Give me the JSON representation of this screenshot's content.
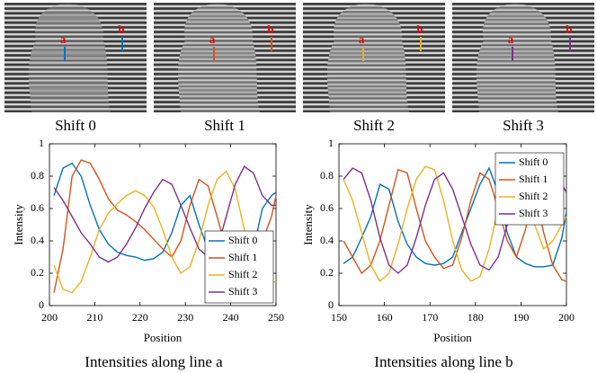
{
  "images": [
    {
      "caption": "Shift 0",
      "markers": [
        "a",
        "b"
      ]
    },
    {
      "caption": "Shift 1",
      "markers": [
        "a",
        "b"
      ]
    },
    {
      "caption": "Shift 2",
      "markers": [
        "a",
        "b"
      ]
    },
    {
      "caption": "Shift 3",
      "markers": [
        "a",
        "b"
      ]
    }
  ],
  "chart_data": [
    {
      "type": "line",
      "caption": "Intensities along line a",
      "xlabel": "Position",
      "ylabel": "Intensity",
      "x": [
        201,
        203,
        205,
        207,
        209,
        211,
        213,
        215,
        217,
        219,
        221,
        223,
        225,
        227,
        229,
        231,
        233,
        235,
        237,
        239,
        241,
        243,
        245,
        247,
        249,
        250
      ],
      "xlim": [
        200,
        250
      ],
      "xticks": [
        200,
        210,
        220,
        230,
        240,
        250
      ],
      "ylim": [
        0,
        1
      ],
      "yticks": [
        0,
        0.2,
        0.4,
        0.6,
        0.8,
        1
      ],
      "legend": "lower-right",
      "series": [
        {
          "name": "Shift 0",
          "color": "#0072bd",
          "values": [
            0.68,
            0.85,
            0.88,
            0.8,
            0.62,
            0.47,
            0.38,
            0.33,
            0.31,
            0.3,
            0.28,
            0.29,
            0.33,
            0.45,
            0.62,
            0.68,
            0.5,
            0.35,
            0.28,
            0.25,
            0.23,
            0.23,
            0.35,
            0.6,
            0.68,
            0.7
          ]
        },
        {
          "name": "Shift 1",
          "color": "#d95319",
          "values": [
            0.08,
            0.35,
            0.8,
            0.9,
            0.88,
            0.78,
            0.66,
            0.59,
            0.56,
            0.52,
            0.47,
            0.41,
            0.35,
            0.3,
            0.4,
            0.62,
            0.78,
            0.74,
            0.55,
            0.35,
            0.23,
            0.2,
            0.25,
            0.4,
            0.55,
            0.68
          ]
        },
        {
          "name": "Shift 2",
          "color": "#edb120",
          "values": [
            0.25,
            0.1,
            0.08,
            0.15,
            0.3,
            0.47,
            0.57,
            0.63,
            0.68,
            0.71,
            0.68,
            0.61,
            0.47,
            0.3,
            0.2,
            0.24,
            0.4,
            0.62,
            0.78,
            0.83,
            0.72,
            0.47,
            0.27,
            0.17,
            0.14,
            0.15
          ]
        },
        {
          "name": "Shift 3",
          "color": "#7e2f8e",
          "values": [
            0.73,
            0.65,
            0.55,
            0.45,
            0.38,
            0.3,
            0.27,
            0.3,
            0.38,
            0.48,
            0.6,
            0.7,
            0.78,
            0.75,
            0.62,
            0.48,
            0.35,
            0.3,
            0.35,
            0.55,
            0.75,
            0.86,
            0.82,
            0.68,
            0.62,
            0.62
          ]
        }
      ]
    },
    {
      "type": "line",
      "caption": "Intensities along line b",
      "xlabel": "Position",
      "ylabel": "Intensity",
      "x": [
        151,
        153,
        155,
        157,
        159,
        161,
        163,
        165,
        167,
        169,
        171,
        173,
        175,
        177,
        179,
        181,
        183,
        185,
        187,
        189,
        191,
        193,
        195,
        197,
        199,
        200
      ],
      "xlim": [
        150,
        200
      ],
      "xticks": [
        150,
        160,
        170,
        180,
        190,
        200
      ],
      "ylim": [
        0,
        1
      ],
      "yticks": [
        0,
        0.2,
        0.4,
        0.6,
        0.8,
        1
      ],
      "legend": "upper-right",
      "series": [
        {
          "name": "Shift 0",
          "color": "#0072bd",
          "values": [
            0.26,
            0.3,
            0.42,
            0.55,
            0.75,
            0.72,
            0.52,
            0.38,
            0.3,
            0.26,
            0.25,
            0.26,
            0.3,
            0.45,
            0.6,
            0.75,
            0.85,
            0.7,
            0.45,
            0.3,
            0.26,
            0.24,
            0.24,
            0.25,
            0.42,
            0.58
          ]
        },
        {
          "name": "Shift 1",
          "color": "#d95319",
          "values": [
            0.4,
            0.3,
            0.2,
            0.25,
            0.4,
            0.62,
            0.84,
            0.82,
            0.6,
            0.4,
            0.3,
            0.23,
            0.25,
            0.42,
            0.65,
            0.82,
            0.78,
            0.6,
            0.4,
            0.3,
            0.47,
            0.72,
            0.45,
            0.25,
            0.16,
            0.15
          ]
        },
        {
          "name": "Shift 2",
          "color": "#edb120",
          "values": [
            0.78,
            0.65,
            0.45,
            0.25,
            0.15,
            0.2,
            0.38,
            0.6,
            0.78,
            0.86,
            0.84,
            0.65,
            0.4,
            0.22,
            0.15,
            0.18,
            0.35,
            0.6,
            0.8,
            0.85,
            0.72,
            0.5,
            0.35,
            0.4,
            0.5,
            0.55
          ]
        },
        {
          "name": "Shift 3",
          "color": "#7e2f8e",
          "values": [
            0.78,
            0.85,
            0.82,
            0.65,
            0.42,
            0.25,
            0.2,
            0.25,
            0.42,
            0.62,
            0.78,
            0.82,
            0.72,
            0.55,
            0.38,
            0.25,
            0.22,
            0.3,
            0.5,
            0.72,
            0.85,
            0.86,
            0.78,
            0.72,
            0.75,
            0.7
          ]
        }
      ]
    }
  ]
}
